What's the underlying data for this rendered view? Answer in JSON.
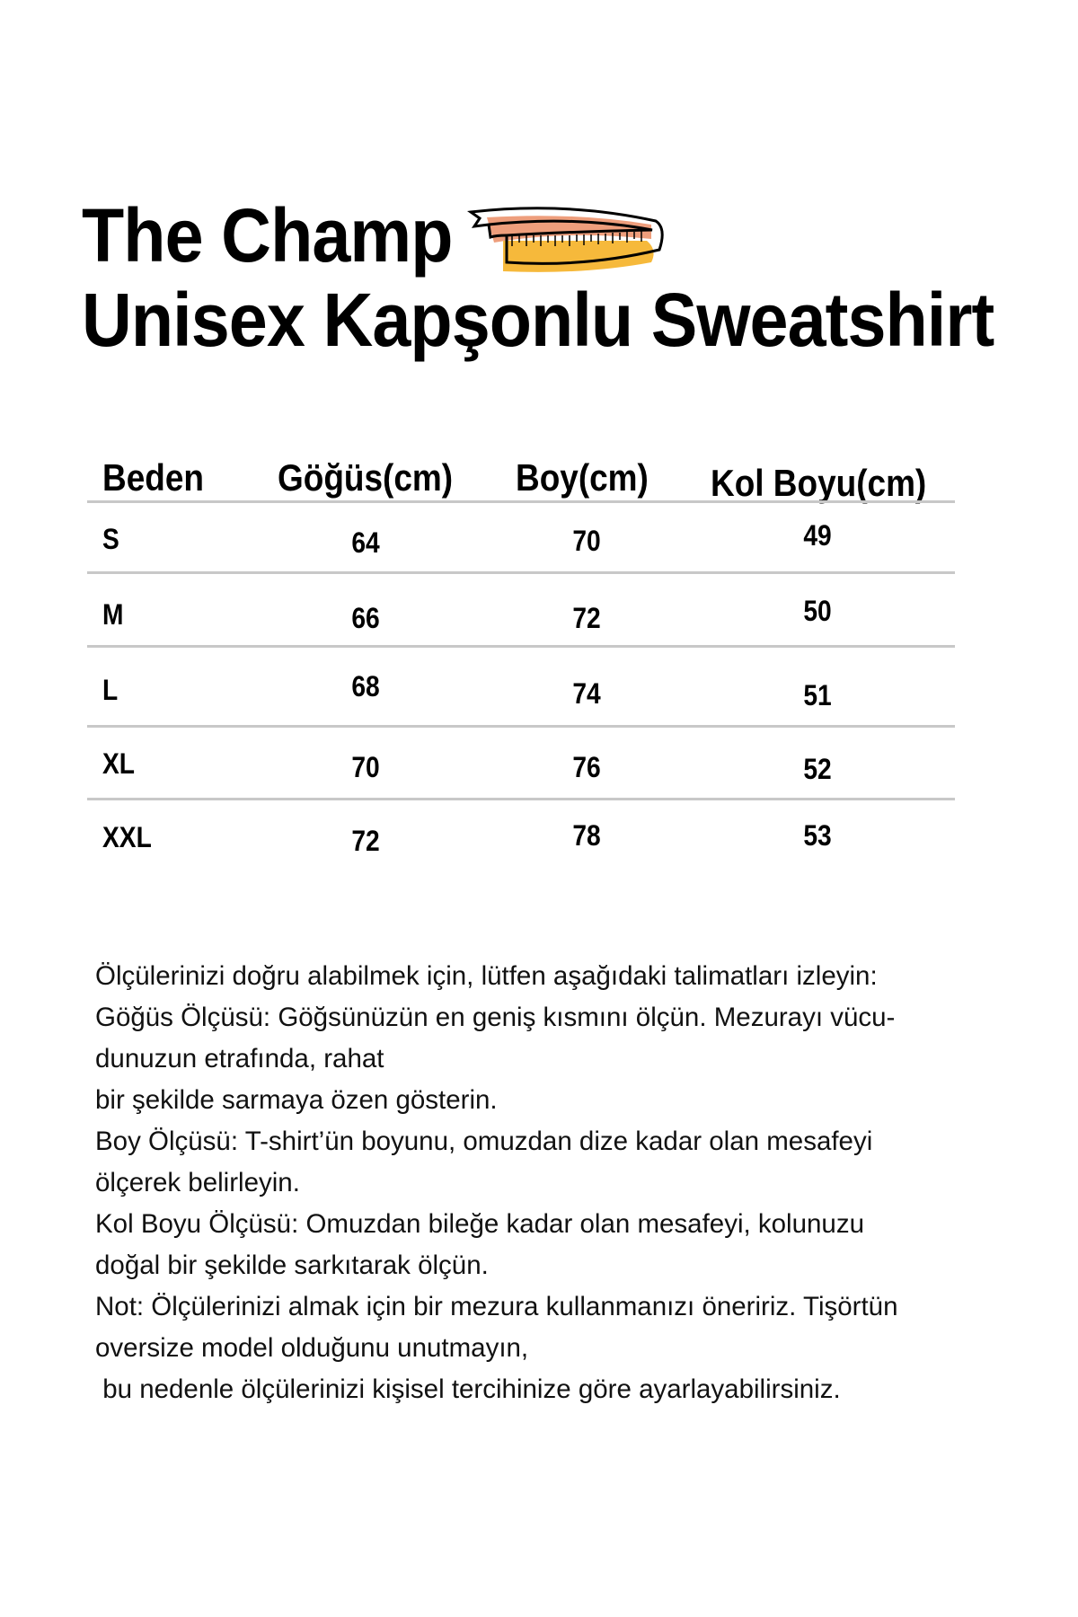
{
  "title": {
    "line1": "The Champ",
    "line2": "Unisex Kapşonlu Sweatshirt",
    "icon": "measuring-tape-icon"
  },
  "table": {
    "headers": [
      "Beden",
      "Göğüs(cm)",
      "Boy(cm)",
      "Kol Boyu(cm)"
    ],
    "rows": [
      [
        "S",
        "64",
        "70",
        "49"
      ],
      [
        "M",
        "66",
        "72",
        "50"
      ],
      [
        "L",
        "68",
        "74",
        "51"
      ],
      [
        "XL",
        "70",
        "76",
        "52"
      ],
      [
        "XXL",
        "72",
        "78",
        "53"
      ]
    ]
  },
  "notes": [
    "Ölçülerinizi doğru alabilmek için, lütfen aşağıdaki talimatları izleyin:",
    "Göğüs Ölçüsü: Göğsünüzün en geniş kısmını ölçün. Mezurayı vücu-",
    "dunuzun etrafında, rahat",
    "bir şekilde sarmaya özen gösterin.",
    "Boy Ölçüsü: T-shirt’ün boyunu, omuzdan dize kadar olan mesafeyi",
    "ölçerek belirleyin.",
    "Kol Boyu Ölçüsü: Omuzdan bileğe kadar olan mesafeyi, kolunuzu",
    "doğal bir şekilde sarkıtarak ölçün.",
    "Not: Ölçülerinizi almak için bir mezura kullanmanızı öneririz. Tişörtün",
    "oversize model olduğunu unutmayın,",
    " bu nedenle ölçülerinizi kişisel tercihinize göre ayarlayabilirsiniz."
  ],
  "colors": {
    "tape_front": "#f6b93b",
    "tape_back": "#ee9e7c",
    "divider": "#c8c8c8"
  }
}
